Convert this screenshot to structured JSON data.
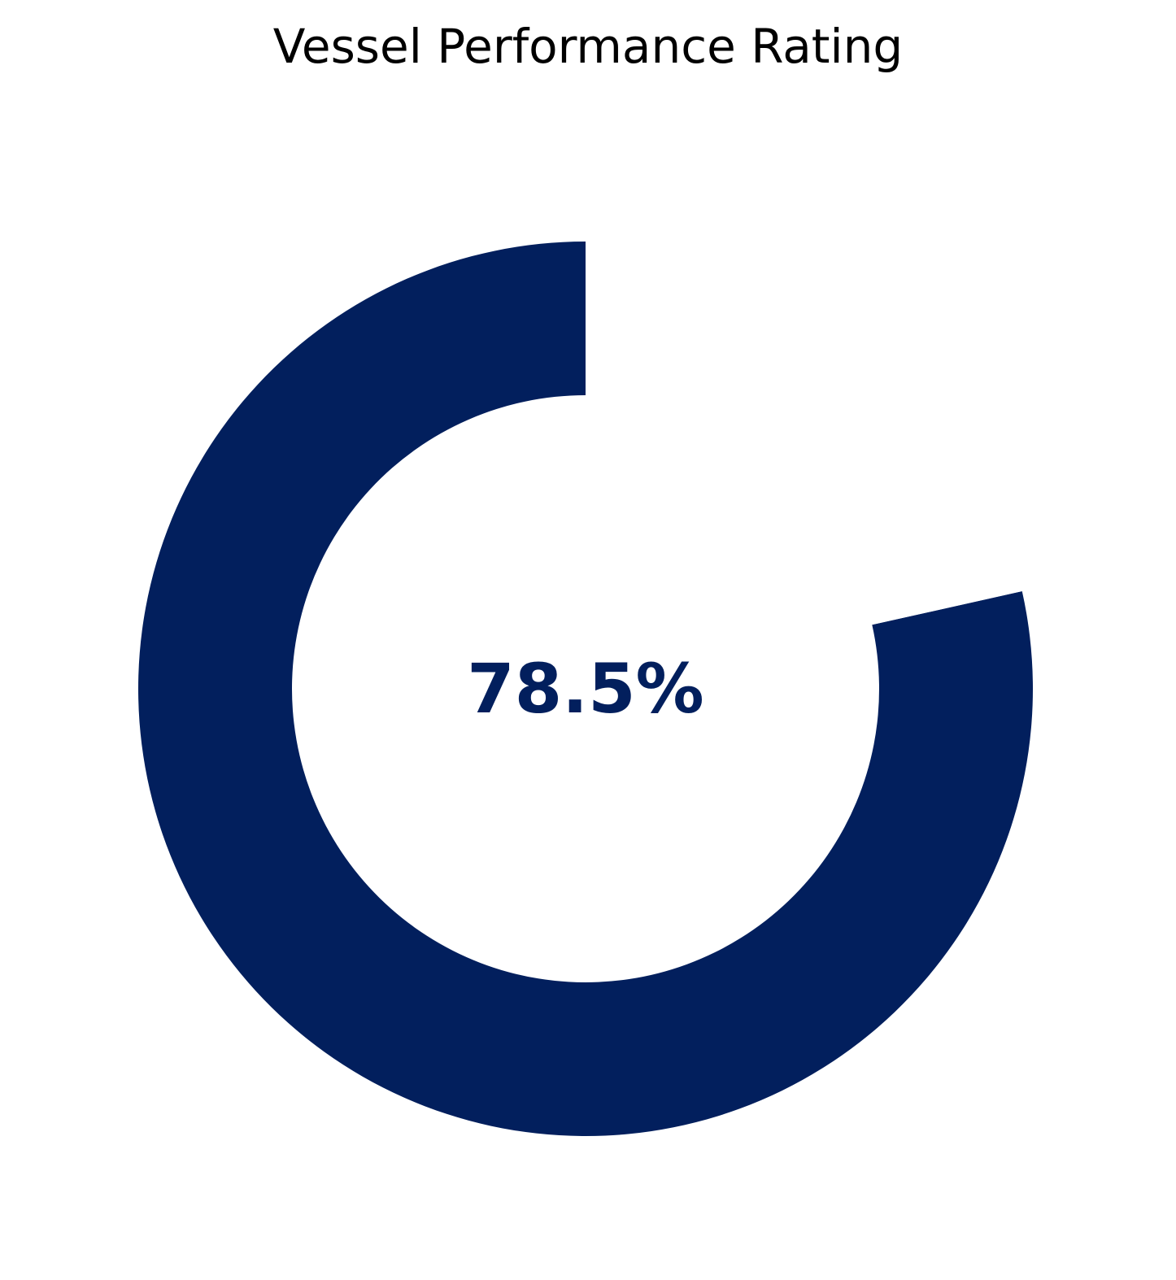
{
  "chart_data": {
    "type": "pie",
    "title": "Vessel Performance Rating",
    "value": 78.5,
    "max": 100,
    "value_label": "78.5%",
    "start": "top",
    "direction": "counterclockwise",
    "colors": {
      "filled": "#021f5d",
      "remaining": "#ffffff",
      "label": "#021f5d"
    }
  }
}
